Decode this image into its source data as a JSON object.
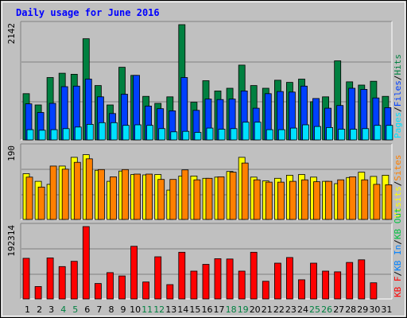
{
  "title": "Daily usage for June 2016",
  "days": [
    "1",
    "2",
    "3",
    "4",
    "5",
    "6",
    "7",
    "8",
    "9",
    "10",
    "11",
    "12",
    "13",
    "14",
    "15",
    "16",
    "17",
    "18",
    "19",
    "20",
    "21",
    "22",
    "23",
    "24",
    "25",
    "26",
    "27",
    "28",
    "29",
    "30",
    "31"
  ],
  "weekend_days": [
    "4",
    "5",
    "11",
    "12",
    "18",
    "19",
    "25",
    "26"
  ],
  "colors": {
    "title": "#0000ff",
    "plot_bg": "#c0c0c0",
    "frame_bg": "#c0c0c0",
    "hits": "#008040",
    "files": "#0040ff",
    "pages": "#00e0ff",
    "visits": "#ffff00",
    "sites": "#ff8000",
    "kbytes": "#ff0000",
    "kb_in": "#0080ff",
    "kb_out": "#00c040",
    "weekday_label": "#000000",
    "weekend_label": "#008040"
  },
  "chart_data": [
    {
      "type": "bar",
      "panel": "hits-files-pages",
      "max_label": "2142",
      "ylim": [
        0,
        2142
      ],
      "legend": [
        "Pages",
        "/",
        "Files",
        "/",
        "Hits"
      ],
      "series": [
        {
          "name": "Hits",
          "values": [
            860,
            650,
            1160,
            1240,
            1220,
            1880,
            1010,
            650,
            1350,
            1200,
            810,
            680,
            800,
            2142,
            700,
            1100,
            910,
            960,
            1390,
            1010,
            960,
            1110,
            1070,
            1130,
            710,
            800,
            1470,
            1080,
            1020,
            1090,
            810
          ]
        },
        {
          "name": "Files",
          "values": [
            670,
            510,
            680,
            990,
            1000,
            1130,
            800,
            490,
            850,
            1200,
            630,
            580,
            540,
            1160,
            550,
            760,
            750,
            760,
            910,
            590,
            860,
            900,
            890,
            1000,
            770,
            590,
            640,
            960,
            940,
            780,
            600
          ]
        },
        {
          "name": "Pages",
          "values": [
            190,
            180,
            190,
            210,
            240,
            290,
            320,
            320,
            270,
            280,
            270,
            210,
            150,
            160,
            140,
            220,
            200,
            210,
            330,
            330,
            190,
            190,
            220,
            280,
            250,
            230,
            200,
            200,
            210,
            270,
            270
          ]
        }
      ]
    },
    {
      "type": "bar",
      "panel": "visits-sites",
      "max_label": "190",
      "ylim": [
        0,
        190
      ],
      "legend": [
        "Visits",
        "/",
        "Sites"
      ],
      "series": [
        {
          "name": "Visits",
          "values": [
            120,
            100,
            92,
            140,
            163,
            170,
            129,
            100,
            127,
            118,
            117,
            118,
            77,
            114,
            114,
            108,
            111,
            126,
            163,
            111,
            101,
            108,
            116,
            118,
            111,
            100,
            94,
            110,
            124,
            113,
            116
          ]
        },
        {
          "name": "Sites",
          "values": [
            111,
            85,
            140,
            132,
            150,
            159,
            131,
            112,
            131,
            119,
            119,
            105,
            105,
            130,
            104,
            108,
            112,
            124,
            148,
            104,
            98,
            98,
            100,
            104,
            99,
            100,
            104,
            112,
            104,
            92,
            91
          ]
        }
      ]
    },
    {
      "type": "bar",
      "panel": "kbytes",
      "max_label": "192314",
      "ylim": [
        0,
        192314
      ],
      "legend": [
        "KBytes",
        "/",
        "KB In",
        "/",
        "KB Out"
      ],
      "series": [
        {
          "name": "KBytes",
          "values": [
            108000,
            33000,
            109000,
            86000,
            100000,
            192314,
            41000,
            70000,
            61000,
            140000,
            45000,
            112000,
            38000,
            124000,
            74000,
            92000,
            107000,
            106000,
            74000,
            124000,
            47000,
            95000,
            110000,
            51000,
            95000,
            74000,
            72000,
            97000,
            104000,
            43000,
            0
          ]
        },
        {
          "name": "KB In",
          "values": [
            0,
            0,
            0,
            0,
            0,
            0,
            0,
            0,
            0,
            0,
            0,
            0,
            0,
            0,
            0,
            0,
            0,
            0,
            0,
            0,
            0,
            0,
            0,
            0,
            0,
            0,
            0,
            0,
            0,
            0,
            0
          ]
        },
        {
          "name": "KB Out",
          "values": [
            0,
            0,
            0,
            0,
            0,
            0,
            0,
            0,
            0,
            0,
            0,
            0,
            0,
            0,
            0,
            0,
            0,
            0,
            0,
            0,
            0,
            0,
            0,
            0,
            0,
            0,
            0,
            0,
            0,
            0,
            0
          ]
        }
      ]
    }
  ]
}
